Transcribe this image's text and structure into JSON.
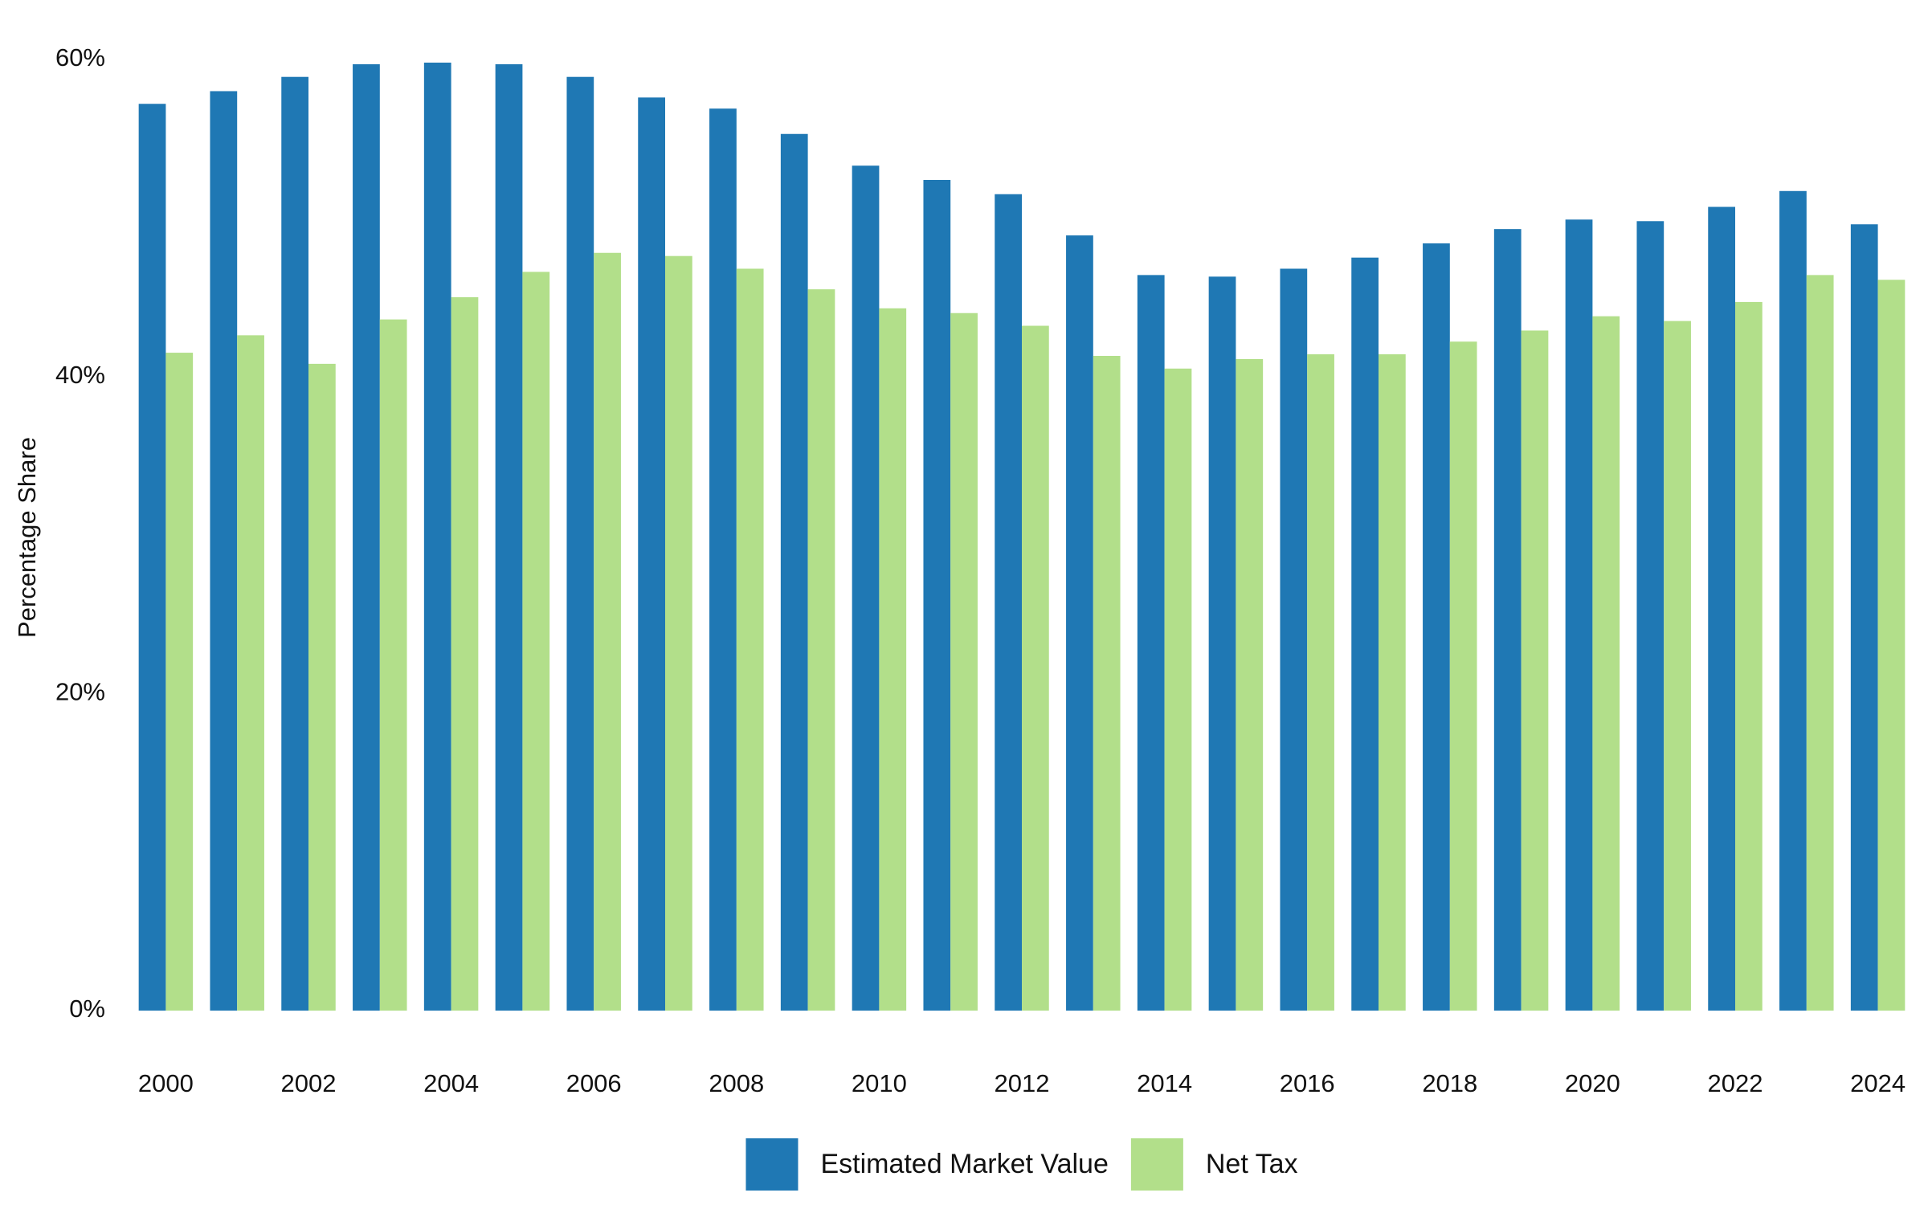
{
  "chart_data": {
    "type": "bar",
    "y_label": "Percentage Share",
    "categories": [
      "2000",
      null,
      "2002",
      null,
      "2004",
      null,
      "2006",
      null,
      "2008",
      null,
      "2010",
      null,
      "2012",
      null,
      "2014",
      null,
      "2016",
      null,
      "2018",
      null,
      "2020",
      null,
      "2022",
      null,
      "2024"
    ],
    "series": [
      {
        "name": "Estimated Market Value",
        "color": "#1f78b4",
        "values": [
          57.2,
          58.0,
          58.9,
          59.7,
          59.8,
          59.7,
          58.9,
          57.6,
          56.9,
          55.3,
          53.3,
          52.4,
          51.5,
          48.9,
          46.4,
          46.3,
          46.8,
          47.5,
          48.4,
          49.3,
          49.9,
          49.8,
          50.7,
          51.7,
          49.6
        ]
      },
      {
        "name": "Net Tax",
        "color": "#b2df8a",
        "values": [
          41.5,
          42.6,
          40.8,
          43.6,
          45.0,
          46.6,
          47.8,
          47.6,
          46.8,
          45.5,
          44.3,
          44.0,
          43.2,
          41.3,
          40.5,
          41.1,
          41.4,
          41.4,
          42.2,
          42.9,
          43.8,
          43.5,
          44.7,
          46.4,
          46.1
        ]
      }
    ],
    "ylim": [
      0,
      60
    ],
    "yticks": [
      {
        "value": 0,
        "label": "0%"
      },
      {
        "value": 20,
        "label": "20%"
      },
      {
        "value": 40,
        "label": "40%"
      },
      {
        "value": 60,
        "label": "60%"
      }
    ],
    "grid": false,
    "legend": "bottom"
  }
}
